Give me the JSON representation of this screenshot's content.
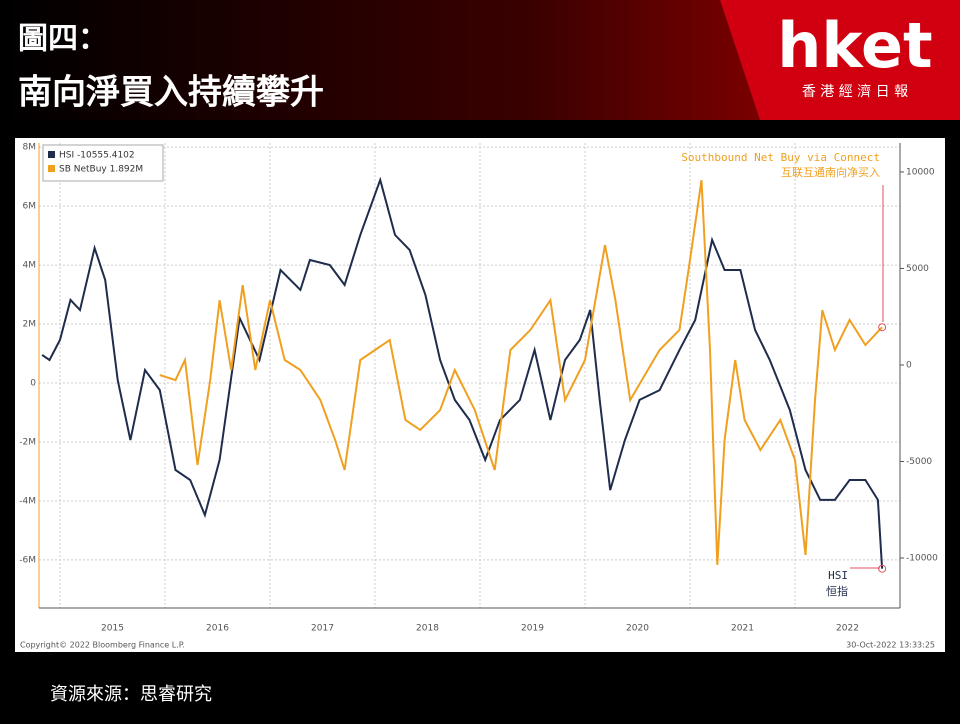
{
  "header": {
    "title_line1": "圖四：",
    "title_line2": "南向淨買入持續攀升",
    "logo": "hket",
    "logo_sub": "香 港 經 濟 日 報"
  },
  "chart_data": {
    "type": "line",
    "legend_labels": [
      "HSI  -10555.4102",
      "SB NetBuy 1.892M"
    ],
    "annotations": [
      "Southbound Net Buy via Connect",
      "互联互通南向净买入",
      "HSI",
      "恒指"
    ],
    "footer_left": "Copyright© 2022 Bloomberg Finance L.P.",
    "footer_right": "30-Oct-2022 13:33:25",
    "xlim": [
      2014.8,
      2023.0
    ],
    "xticks": [
      2015,
      2016,
      2017,
      2018,
      2019,
      2020,
      2021,
      2022
    ],
    "ylim": [
      -7.63,
      8.14
    ],
    "yticks": [
      {
        "value": -6,
        "label": "-6M"
      },
      {
        "value": -4,
        "label": "-4M"
      },
      {
        "value": -2,
        "label": "-2M"
      },
      0,
      {
        "value": 2,
        "label": "2M"
      },
      {
        "value": 4,
        "label": "4M"
      },
      {
        "value": 6,
        "label": "6M"
      },
      {
        "value": 8,
        "label": "8M"
      }
    ],
    "y2lim": [
      -12590,
      11500
    ],
    "y2ticks": [
      -10000,
      -5000,
      0,
      5000,
      10000
    ],
    "grid": true,
    "series": [
      {
        "name": "HSI",
        "color": "#1f2d4d",
        "axis": "y2",
        "x": [
          2014.83,
          2014.9,
          2015.0,
          2015.1,
          2015.19,
          2015.33,
          2015.43,
          2015.55,
          2015.67,
          2015.81,
          2015.95,
          2016.1,
          2016.24,
          2016.38,
          2016.52,
          2016.71,
          2016.9,
          2017.1,
          2017.29,
          2017.38,
          2017.57,
          2017.71,
          2017.86,
          2018.05,
          2018.19,
          2018.33,
          2018.48,
          2018.62,
          2018.76,
          2018.9,
          2019.05,
          2019.19,
          2019.38,
          2019.52,
          2019.67,
          2019.81,
          2019.95,
          2020.05,
          2020.14,
          2020.24,
          2020.38,
          2020.52,
          2020.71,
          2020.9,
          2021.05,
          2021.21,
          2021.33,
          2021.48,
          2021.62,
          2021.76,
          2021.95,
          2022.1,
          2022.24,
          2022.38,
          2022.52,
          2022.67,
          2022.79,
          2022.83
        ],
        "values": [
          520,
          260,
          1300,
          3370,
          2850,
          6060,
          4400,
          -780,
          -3890,
          -260,
          -1300,
          -5440,
          -5960,
          -7770,
          -4920,
          2440,
          260,
          4920,
          3890,
          5440,
          5180,
          4150,
          6740,
          9590,
          6740,
          5960,
          3630,
          260,
          -1810,
          -2850,
          -4920,
          -2850,
          -1810,
          780,
          -2850,
          260,
          1300,
          2850,
          -1810,
          -6480,
          -3890,
          -1810,
          -1300,
          780,
          2330,
          6480,
          4920,
          4920,
          1810,
          260,
          -2330,
          -5440,
          -6990,
          -6990,
          -5960,
          -5960,
          -6990,
          -10555.4102
        ]
      },
      {
        "name": "SB NetBuy",
        "color": "#f0a020",
        "axis": "y",
        "x": [
          2015.95,
          2016.1,
          2016.19,
          2016.31,
          2016.43,
          2016.52,
          2016.63,
          2016.74,
          2016.86,
          2017.0,
          2017.14,
          2017.29,
          2017.48,
          2017.62,
          2017.71,
          2017.86,
          2018.0,
          2018.14,
          2018.29,
          2018.43,
          2018.62,
          2018.76,
          2018.95,
          2019.14,
          2019.29,
          2019.48,
          2019.67,
          2019.81,
          2020.0,
          2020.19,
          2020.29,
          2020.43,
          2020.57,
          2020.71,
          2020.9,
          2021.0,
          2021.11,
          2021.19,
          2021.26,
          2021.33,
          2021.43,
          2021.52,
          2021.67,
          2021.86,
          2022.0,
          2022.1,
          2022.19,
          2022.26,
          2022.38,
          2022.52,
          2022.67,
          2022.83
        ],
        "values": [
          0.27,
          0.1,
          0.78,
          -2.78,
          0.1,
          2.81,
          0.44,
          3.32,
          0.44,
          2.81,
          0.78,
          0.44,
          -0.58,
          -1.93,
          -2.95,
          0.78,
          1.12,
          1.46,
          -1.25,
          -1.59,
          -0.92,
          0.44,
          -0.92,
          -2.95,
          1.12,
          1.8,
          2.81,
          -0.58,
          0.78,
          4.68,
          2.81,
          -0.58,
          0.27,
          1.12,
          1.8,
          4.17,
          6.88,
          1.12,
          -6.17,
          -1.93,
          0.78,
          -1.25,
          -2.27,
          -1.25,
          -2.61,
          -5.83,
          -0.58,
          2.47,
          1.12,
          2.14,
          1.29,
          1.892
        ]
      }
    ]
  },
  "source": "資源來源：思睿研究"
}
